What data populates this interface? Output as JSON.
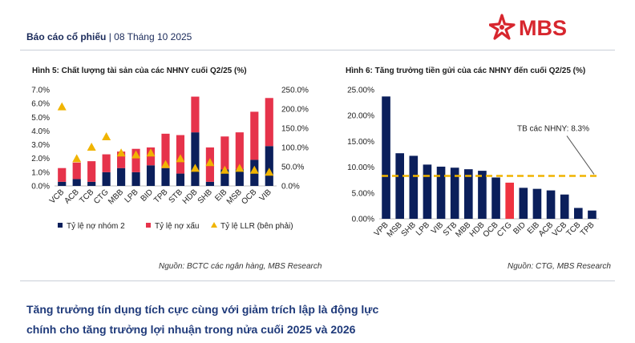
{
  "header": {
    "report_type": "Báo cáo cổ phiếu",
    "separator": " | ",
    "date": "08 Tháng 10 2025"
  },
  "logo": {
    "text": "MBS",
    "color": "#d7262e"
  },
  "colors": {
    "navy": "#0b1f5b",
    "red": "#e6334b",
    "highlight": "#ef3340",
    "gold": "#f0b400",
    "avg_line": "#f0b400",
    "conclusion": "#1f3a7a"
  },
  "chart_data": [
    {
      "type": "bar",
      "title": "Hình 5: Chất lượng tài sản của các NHNY cuối Q2/25 (%)",
      "categories": [
        "VCB",
        "ACB",
        "TCB",
        "CTG",
        "MBB",
        "LPB",
        "BID",
        "TPB",
        "STB",
        "HDB",
        "SHB",
        "EIB",
        "MSB",
        "OCB",
        "VIB"
      ],
      "stacked": true,
      "series": [
        {
          "name": "Tỷ lệ nợ nhóm 2",
          "axis": "left",
          "color": "#0b1f5b",
          "values": [
            0.3,
            0.5,
            0.3,
            1.0,
            1.3,
            1.0,
            1.5,
            1.3,
            0.9,
            3.9,
            0.3,
            1.2,
            1.2,
            1.9,
            2.9
          ]
        },
        {
          "name": "Tỷ lệ nợ xấu",
          "axis": "left",
          "color": "#e6334b",
          "values": [
            1.0,
            1.2,
            1.5,
            1.3,
            1.2,
            1.7,
            1.3,
            2.5,
            2.8,
            2.6,
            2.5,
            2.4,
            2.7,
            3.5,
            3.5
          ]
        },
        {
          "name": "Tỷ lệ LLR (bên phải)",
          "axis": "right",
          "marker": "triangle",
          "color": "#f0b400",
          "values": [
            205,
            70,
            100,
            127,
            85,
            80,
            85,
            55,
            70,
            45,
            60,
            40,
            45,
            40,
            35
          ]
        }
      ],
      "y_left": {
        "ylim": [
          0,
          7
        ],
        "ticks": [
          "0.0%",
          "1.0%",
          "2.0%",
          "3.0%",
          "4.0%",
          "5.0%",
          "6.0%",
          "7.0%"
        ]
      },
      "y_right": {
        "ylim": [
          0,
          250
        ],
        "ticks": [
          "0.0%",
          "50.0%",
          "100.0%",
          "150.0%",
          "200.0%",
          "250.0%"
        ]
      },
      "grid": false,
      "legend": "bottom",
      "source": "Nguồn: BCTC các ngân hàng, MBS Research"
    },
    {
      "type": "bar",
      "title": "Hình 6: Tăng trưởng tiền gửi của các NHNY đến cuối Q2/25 (%)",
      "categories": [
        "VPB",
        "MSB",
        "SHB",
        "LPB",
        "VIB",
        "STB",
        "MBB",
        "HDB",
        "OCB",
        "CTG",
        "BID",
        "EIB",
        "ACB",
        "VCB",
        "TCB",
        "TPB"
      ],
      "values": [
        23.7,
        12.7,
        12.2,
        10.5,
        10.1,
        9.9,
        9.6,
        9.3,
        8.0,
        7.0,
        6.0,
        5.8,
        5.5,
        4.7,
        2.1,
        1.6
      ],
      "highlight": "CTG",
      "ylim": [
        0,
        25
      ],
      "ticks": [
        "0.00%",
        "5.00%",
        "10.00%",
        "15.00%",
        "20.00%",
        "25.00%"
      ],
      "reference_line": {
        "value": 8.3,
        "label": "TB các NHNY: 8.3%"
      },
      "grid": false,
      "source": "Nguồn: CTG, MBS Research"
    }
  ],
  "conclusion": {
    "line1": "Tăng trưởng tín dụng tích cực cùng với giảm trích lập là động lực",
    "line2": "chính cho tăng trưởng lợi nhuận trong nửa cuối 2025 và 2026"
  }
}
